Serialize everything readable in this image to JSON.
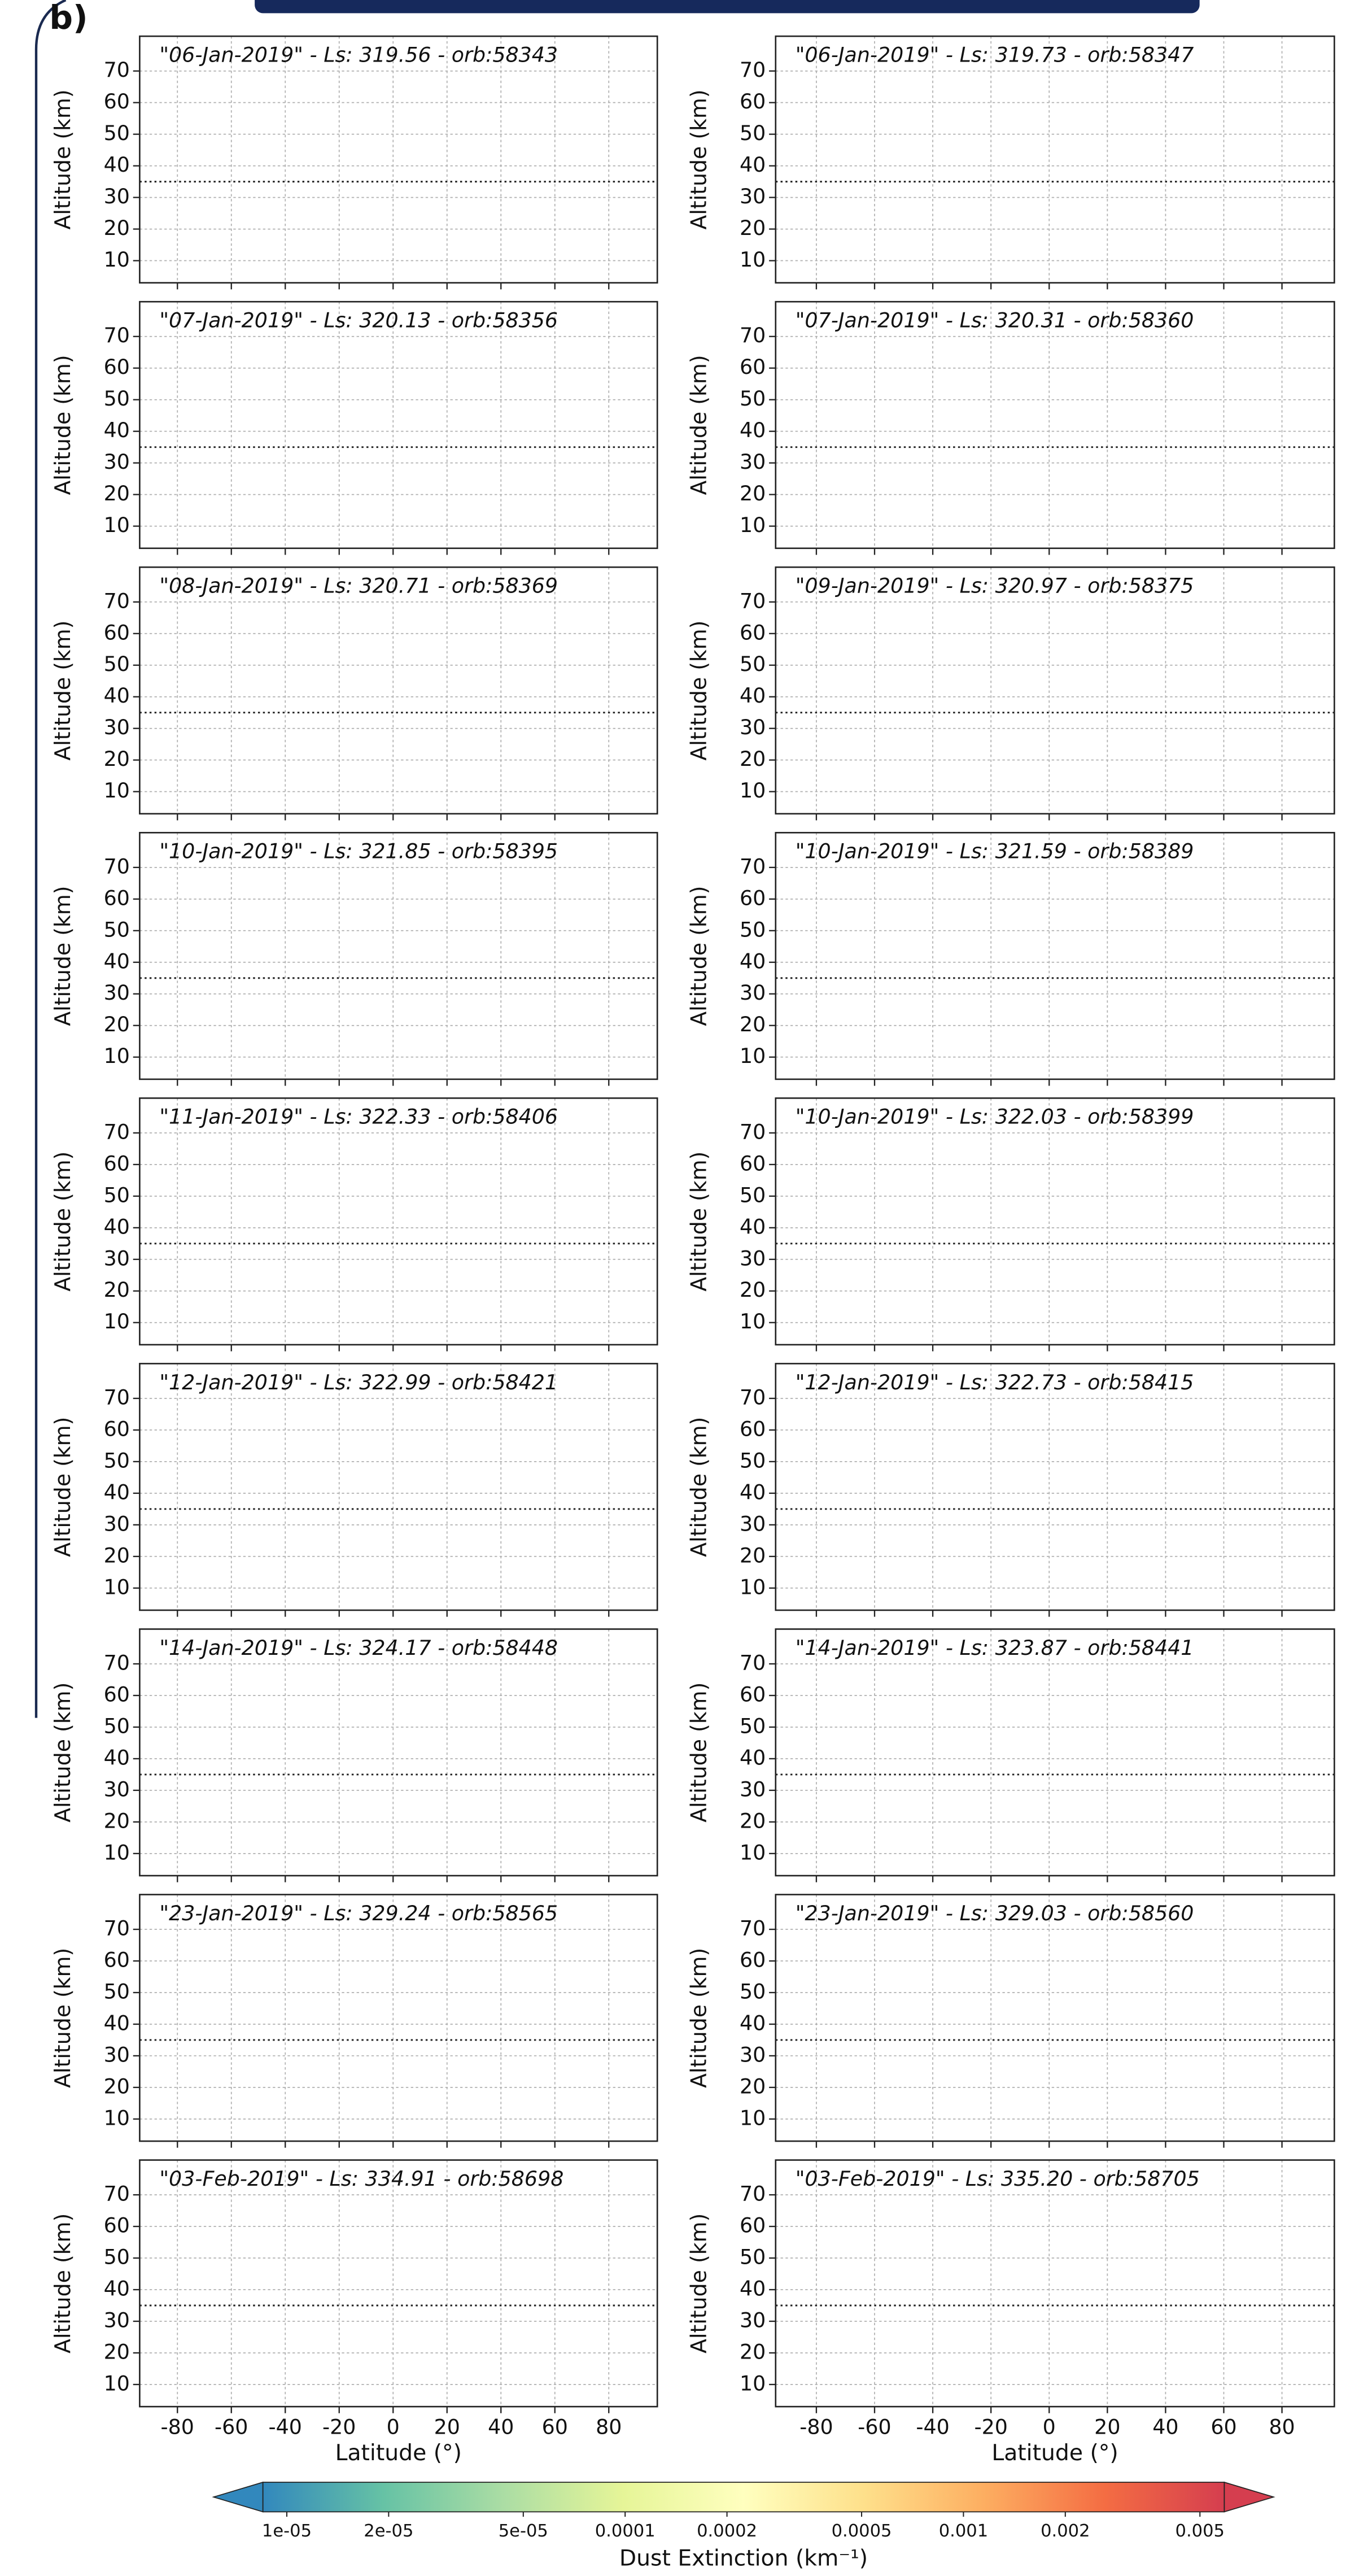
{
  "panel_label": "b)",
  "chart_data": [
    {
      "type": "heatmap",
      "title": "\"06-Jan-2019\" - Ls: 319.56 - orb:58343",
      "ylabel": "Altitude (km)",
      "xlim": [
        -94,
        98
      ],
      "ylim": [
        3,
        81
      ],
      "xticks": [
        -80,
        -60,
        -40,
        -20,
        0,
        20,
        40,
        60,
        80
      ],
      "yticks": [
        10,
        20,
        30,
        40,
        50,
        60,
        70
      ],
      "grid": true,
      "ref_line": 35,
      "show_xtick_labels": false
    },
    {
      "type": "heatmap",
      "title": "\"06-Jan-2019\" - Ls: 319.73 - orb:58347",
      "ylabel": "Altitude (km)",
      "xlim": [
        -94,
        98
      ],
      "ylim": [
        3,
        81
      ],
      "xticks": [
        -80,
        -60,
        -40,
        -20,
        0,
        20,
        40,
        60,
        80
      ],
      "yticks": [
        10,
        20,
        30,
        40,
        50,
        60,
        70
      ],
      "grid": true,
      "ref_line": 35,
      "show_xtick_labels": false
    },
    {
      "type": "heatmap",
      "title": "\"07-Jan-2019\" - Ls: 320.13 - orb:58356",
      "ylabel": "Altitude (km)",
      "xlim": [
        -94,
        98
      ],
      "ylim": [
        3,
        81
      ],
      "xticks": [
        -80,
        -60,
        -40,
        -20,
        0,
        20,
        40,
        60,
        80
      ],
      "yticks": [
        10,
        20,
        30,
        40,
        50,
        60,
        70
      ],
      "grid": true,
      "ref_line": 35,
      "show_xtick_labels": false
    },
    {
      "type": "heatmap",
      "title": "\"07-Jan-2019\" - Ls: 320.31 - orb:58360",
      "ylabel": "Altitude (km)",
      "xlim": [
        -94,
        98
      ],
      "ylim": [
        3,
        81
      ],
      "xticks": [
        -80,
        -60,
        -40,
        -20,
        0,
        20,
        40,
        60,
        80
      ],
      "yticks": [
        10,
        20,
        30,
        40,
        50,
        60,
        70
      ],
      "grid": true,
      "ref_line": 35,
      "show_xtick_labels": false
    },
    {
      "type": "heatmap",
      "title": "\"08-Jan-2019\" - Ls: 320.71 - orb:58369",
      "ylabel": "Altitude (km)",
      "xlim": [
        -94,
        98
      ],
      "ylim": [
        3,
        81
      ],
      "xticks": [
        -80,
        -60,
        -40,
        -20,
        0,
        20,
        40,
        60,
        80
      ],
      "yticks": [
        10,
        20,
        30,
        40,
        50,
        60,
        70
      ],
      "grid": true,
      "ref_line": 35,
      "show_xtick_labels": false
    },
    {
      "type": "heatmap",
      "title": "\"09-Jan-2019\" - Ls: 320.97 - orb:58375",
      "ylabel": "Altitude (km)",
      "xlim": [
        -94,
        98
      ],
      "ylim": [
        3,
        81
      ],
      "xticks": [
        -80,
        -60,
        -40,
        -20,
        0,
        20,
        40,
        60,
        80
      ],
      "yticks": [
        10,
        20,
        30,
        40,
        50,
        60,
        70
      ],
      "grid": true,
      "ref_line": 35,
      "show_xtick_labels": false
    },
    {
      "type": "heatmap",
      "title": "\"10-Jan-2019\" - Ls: 321.85 - orb:58395",
      "ylabel": "Altitude (km)",
      "xlim": [
        -94,
        98
      ],
      "ylim": [
        3,
        81
      ],
      "xticks": [
        -80,
        -60,
        -40,
        -20,
        0,
        20,
        40,
        60,
        80
      ],
      "yticks": [
        10,
        20,
        30,
        40,
        50,
        60,
        70
      ],
      "grid": true,
      "ref_line": 35,
      "show_xtick_labels": false
    },
    {
      "type": "heatmap",
      "title": "\"10-Jan-2019\" - Ls: 321.59 - orb:58389",
      "ylabel": "Altitude (km)",
      "xlim": [
        -94,
        98
      ],
      "ylim": [
        3,
        81
      ],
      "xticks": [
        -80,
        -60,
        -40,
        -20,
        0,
        20,
        40,
        60,
        80
      ],
      "yticks": [
        10,
        20,
        30,
        40,
        50,
        60,
        70
      ],
      "grid": true,
      "ref_line": 35,
      "show_xtick_labels": false
    },
    {
      "type": "heatmap",
      "title": "\"11-Jan-2019\" - Ls: 322.33 - orb:58406",
      "ylabel": "Altitude (km)",
      "xlim": [
        -94,
        98
      ],
      "ylim": [
        3,
        81
      ],
      "xticks": [
        -80,
        -60,
        -40,
        -20,
        0,
        20,
        40,
        60,
        80
      ],
      "yticks": [
        10,
        20,
        30,
        40,
        50,
        60,
        70
      ],
      "grid": true,
      "ref_line": 35,
      "show_xtick_labels": false
    },
    {
      "type": "heatmap",
      "title": "\"10-Jan-2019\" - Ls: 322.03 - orb:58399",
      "ylabel": "Altitude (km)",
      "xlim": [
        -94,
        98
      ],
      "ylim": [
        3,
        81
      ],
      "xticks": [
        -80,
        -60,
        -40,
        -20,
        0,
        20,
        40,
        60,
        80
      ],
      "yticks": [
        10,
        20,
        30,
        40,
        50,
        60,
        70
      ],
      "grid": true,
      "ref_line": 35,
      "show_xtick_labels": false
    },
    {
      "type": "heatmap",
      "title": "\"12-Jan-2019\" - Ls: 322.99 - orb:58421",
      "ylabel": "Altitude (km)",
      "xlim": [
        -94,
        98
      ],
      "ylim": [
        3,
        81
      ],
      "xticks": [
        -80,
        -60,
        -40,
        -20,
        0,
        20,
        40,
        60,
        80
      ],
      "yticks": [
        10,
        20,
        30,
        40,
        50,
        60,
        70
      ],
      "grid": true,
      "ref_line": 35,
      "show_xtick_labels": false
    },
    {
      "type": "heatmap",
      "title": "\"12-Jan-2019\" - Ls: 322.73 - orb:58415",
      "ylabel": "Altitude (km)",
      "xlim": [
        -94,
        98
      ],
      "ylim": [
        3,
        81
      ],
      "xticks": [
        -80,
        -60,
        -40,
        -20,
        0,
        20,
        40,
        60,
        80
      ],
      "yticks": [
        10,
        20,
        30,
        40,
        50,
        60,
        70
      ],
      "grid": true,
      "ref_line": 35,
      "show_xtick_labels": false
    },
    {
      "type": "heatmap",
      "title": "\"14-Jan-2019\" - Ls: 324.17 - orb:58448",
      "ylabel": "Altitude (km)",
      "xlim": [
        -94,
        98
      ],
      "ylim": [
        3,
        81
      ],
      "xticks": [
        -80,
        -60,
        -40,
        -20,
        0,
        20,
        40,
        60,
        80
      ],
      "yticks": [
        10,
        20,
        30,
        40,
        50,
        60,
        70
      ],
      "grid": true,
      "ref_line": 35,
      "show_xtick_labels": false
    },
    {
      "type": "heatmap",
      "title": "\"14-Jan-2019\" - Ls: 323.87 - orb:58441",
      "ylabel": "Altitude (km)",
      "xlim": [
        -94,
        98
      ],
      "ylim": [
        3,
        81
      ],
      "xticks": [
        -80,
        -60,
        -40,
        -20,
        0,
        20,
        40,
        60,
        80
      ],
      "yticks": [
        10,
        20,
        30,
        40,
        50,
        60,
        70
      ],
      "grid": true,
      "ref_line": 35,
      "show_xtick_labels": false
    },
    {
      "type": "heatmap",
      "title": "\"23-Jan-2019\" - Ls: 329.24 - orb:58565",
      "ylabel": "Altitude (km)",
      "xlim": [
        -94,
        98
      ],
      "ylim": [
        3,
        81
      ],
      "xticks": [
        -80,
        -60,
        -40,
        -20,
        0,
        20,
        40,
        60,
        80
      ],
      "yticks": [
        10,
        20,
        30,
        40,
        50,
        60,
        70
      ],
      "grid": true,
      "ref_line": 35,
      "show_xtick_labels": false
    },
    {
      "type": "heatmap",
      "title": "\"23-Jan-2019\" - Ls: 329.03 - orb:58560",
      "ylabel": "Altitude (km)",
      "xlim": [
        -94,
        98
      ],
      "ylim": [
        3,
        81
      ],
      "xticks": [
        -80,
        -60,
        -40,
        -20,
        0,
        20,
        40,
        60,
        80
      ],
      "yticks": [
        10,
        20,
        30,
        40,
        50,
        60,
        70
      ],
      "grid": true,
      "ref_line": 35,
      "show_xtick_labels": false
    },
    {
      "type": "heatmap",
      "title": "\"03-Feb-2019\" - Ls: 334.91 - orb:58698",
      "ylabel": "Altitude (km)",
      "xlabel": "Latitude (°)",
      "xlim": [
        -94,
        98
      ],
      "ylim": [
        3,
        81
      ],
      "xticks": [
        -80,
        -60,
        -40,
        -20,
        0,
        20,
        40,
        60,
        80
      ],
      "yticks": [
        10,
        20,
        30,
        40,
        50,
        60,
        70
      ],
      "grid": true,
      "ref_line": 35,
      "show_xtick_labels": true
    },
    {
      "type": "heatmap",
      "title": "\"03-Feb-2019\" - Ls: 335.20 - orb:58705",
      "ylabel": "Altitude (km)",
      "xlabel": "Latitude (°)",
      "xlim": [
        -94,
        98
      ],
      "ylim": [
        3,
        81
      ],
      "xticks": [
        -80,
        -60,
        -40,
        -20,
        0,
        20,
        40,
        60,
        80
      ],
      "yticks": [
        10,
        20,
        30,
        40,
        50,
        60,
        70
      ],
      "grid": true,
      "ref_line": 35,
      "show_xtick_labels": true
    },
    {
      "type": "colorbar",
      "label": "Dust Extinction (km⁻¹)",
      "log_scale": true,
      "lim": [
        8.5e-06,
        0.0059
      ],
      "ticks": [
        {
          "value": 1e-05,
          "label": "1e-05"
        },
        {
          "value": 2e-05,
          "label": "2e-05"
        },
        {
          "value": 5e-05,
          "label": "5e-05"
        },
        0.0001,
        0.0002,
        0.0005,
        0.001,
        0.002,
        0.005
      ],
      "colors": [
        "#3288bd",
        "#66c2a5",
        "#abdda4",
        "#e6f598",
        "#ffffbf",
        "#fee08b",
        "#fdae61",
        "#f46d43",
        "#d53e4f"
      ]
    }
  ]
}
